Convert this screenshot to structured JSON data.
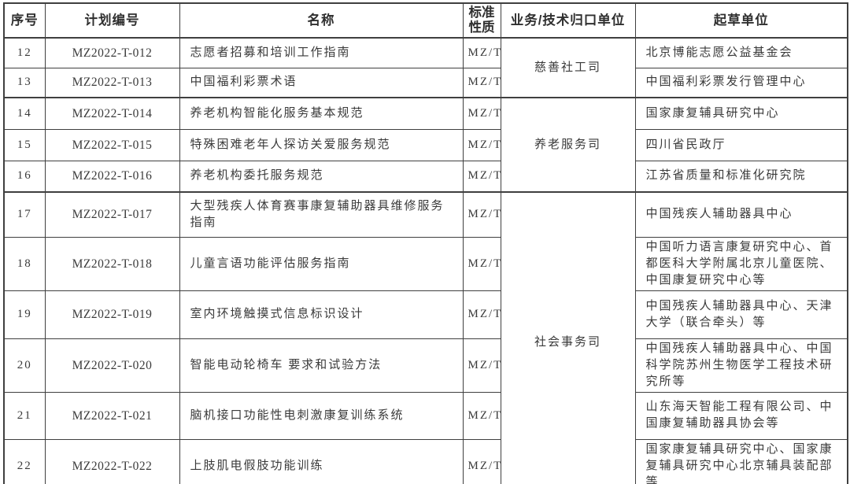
{
  "header": {
    "no": "序号",
    "code": "计划编号",
    "name": "名称",
    "nature": "标准性质",
    "dept": "业务/技术归口单位",
    "drafter": "起草单位"
  },
  "rows": [
    {
      "no": "12",
      "code": "MZ2022-T-012",
      "name": "志愿者招募和培训工作指南",
      "nature": "MZ/T",
      "dept": "慈善社工司",
      "drafter": "北京博能志愿公益基金会"
    },
    {
      "no": "13",
      "code": "MZ2022-T-013",
      "name": "中国福利彩票术语",
      "nature": "MZ/T",
      "drafter": "中国福利彩票发行管理中心"
    },
    {
      "no": "14",
      "code": "MZ2022-T-014",
      "name": "养老机构智能化服务基本规范",
      "nature": "MZ/T",
      "dept": "养老服务司",
      "drafter": "国家康复辅具研究中心"
    },
    {
      "no": "15",
      "code": "MZ2022-T-015",
      "name": "特殊困难老年人探访关爱服务规范",
      "nature": "MZ/T",
      "drafter": "四川省民政厅"
    },
    {
      "no": "16",
      "code": "MZ2022-T-016",
      "name": "养老机构委托服务规范",
      "nature": "MZ/T",
      "drafter": "江苏省质量和标准化研究院"
    },
    {
      "no": "17",
      "code": "MZ2022-T-017",
      "name": "大型残疾人体育赛事康复辅助器具维修服务指南",
      "nature": "MZ/T",
      "dept": "社会事务司",
      "drafter": "中国残疾人辅助器具中心"
    },
    {
      "no": "18",
      "code": "MZ2022-T-018",
      "name": "儿童言语功能评估服务指南",
      "nature": "MZ/T",
      "drafter": "中国听力语言康复研究中心、首都医科大学附属北京儿童医院、中国康复研究中心等"
    },
    {
      "no": "19",
      "code": "MZ2022-T-019",
      "name": "室内环境触摸式信息标识设计",
      "nature": "MZ/T",
      "drafter": "中国残疾人辅助器具中心、天津大学（联合牵头）等"
    },
    {
      "no": "20",
      "code": "MZ2022-T-020",
      "name": "智能电动轮椅车 要求和试验方法",
      "nature": "MZ/T",
      "drafter": "中国残疾人辅助器具中心、中国科学院苏州生物医学工程技术研究所等"
    },
    {
      "no": "21",
      "code": "MZ2022-T-021",
      "name": "脑机接口功能性电刺激康复训练系统",
      "nature": "MZ/T",
      "drafter": "山东海天智能工程有限公司、中国康复辅助器具协会等"
    },
    {
      "no": "22",
      "code": "MZ2022-T-022",
      "name": "上肢肌电假肢功能训练",
      "nature": "MZ/T",
      "drafter": "国家康复辅具研究中心、国家康复辅具研究中心北京辅具装配部等"
    }
  ]
}
